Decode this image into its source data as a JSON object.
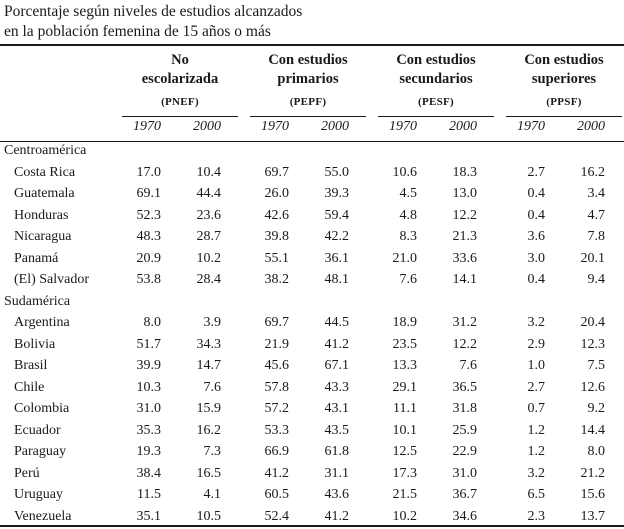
{
  "title": {
    "line1": "Porcentaje según niveles de estudios alcanzados",
    "line2": "en la población femenina de 15 años o más"
  },
  "groups": [
    {
      "line1": "No",
      "line2": "escolarizada",
      "code": "(PNEF)"
    },
    {
      "line1": "Con estudios",
      "line2": "primarios",
      "code": "(PEPF)"
    },
    {
      "line1": "Con estudios",
      "line2": "secundarios",
      "code": "(PESF)"
    },
    {
      "line1": "Con estudios",
      "line2": "superiores",
      "code": "(PPSF)"
    }
  ],
  "years": [
    "1970",
    "2000"
  ],
  "sections": [
    {
      "name": "Centroamérica",
      "rows": [
        {
          "country": "Costa Rica",
          "values": [
            "17.0",
            "10.4",
            "69.7",
            "55.0",
            "10.6",
            "18.3",
            "2.7",
            "16.2"
          ]
        },
        {
          "country": "Guatemala",
          "values": [
            "69.1",
            "44.4",
            "26.0",
            "39.3",
            "4.5",
            "13.0",
            "0.4",
            "3.4"
          ]
        },
        {
          "country": "Honduras",
          "values": [
            "52.3",
            "23.6",
            "42.6",
            "59.4",
            "4.8",
            "12.2",
            "0.4",
            "4.7"
          ]
        },
        {
          "country": "Nicaragua",
          "values": [
            "48.3",
            "28.7",
            "39.8",
            "42.2",
            "8.3",
            "21.3",
            "3.6",
            "7.8"
          ]
        },
        {
          "country": "Panamá",
          "values": [
            "20.9",
            "10.2",
            "55.1",
            "36.1",
            "21.0",
            "33.6",
            "3.0",
            "20.1"
          ]
        },
        {
          "country": "(El) Salvador",
          "values": [
            "53.8",
            "28.4",
            "38.2",
            "48.1",
            "7.6",
            "14.1",
            "0.4",
            "9.4"
          ]
        }
      ]
    },
    {
      "name": "Sudamérica",
      "rows": [
        {
          "country": "Argentina",
          "values": [
            "8.0",
            "3.9",
            "69.7",
            "44.5",
            "18.9",
            "31.2",
            "3.2",
            "20.4"
          ]
        },
        {
          "country": "Bolivia",
          "values": [
            "51.7",
            "34.3",
            "21.9",
            "41.2",
            "23.5",
            "12.2",
            "2.9",
            "12.3"
          ]
        },
        {
          "country": "Brasil",
          "values": [
            "39.9",
            "14.7",
            "45.6",
            "67.1",
            "13.3",
            "7.6",
            "1.0",
            "7.5"
          ]
        },
        {
          "country": "Chile",
          "values": [
            "10.3",
            "7.6",
            "57.8",
            "43.3",
            "29.1",
            "36.5",
            "2.7",
            "12.6"
          ]
        },
        {
          "country": "Colombia",
          "values": [
            "31.0",
            "15.9",
            "57.2",
            "43.1",
            "11.1",
            "31.8",
            "0.7",
            "9.2"
          ]
        },
        {
          "country": "Ecuador",
          "values": [
            "35.3",
            "16.2",
            "53.3",
            "43.5",
            "10.1",
            "25.9",
            "1.2",
            "14.4"
          ]
        },
        {
          "country": "Paraguay",
          "values": [
            "19.3",
            "7.3",
            "66.9",
            "61.8",
            "12.5",
            "22.9",
            "1.2",
            "8.0"
          ]
        },
        {
          "country": "Perú",
          "values": [
            "38.4",
            "16.5",
            "41.2",
            "31.1",
            "17.3",
            "31.0",
            "3.2",
            "21.2"
          ]
        },
        {
          "country": "Uruguay",
          "values": [
            "11.5",
            "4.1",
            "60.5",
            "43.6",
            "21.5",
            "36.7",
            "6.5",
            "15.6"
          ]
        },
        {
          "country": "Venezuela",
          "values": [
            "35.1",
            "10.5",
            "52.4",
            "41.2",
            "10.2",
            "34.6",
            "2.3",
            "13.7"
          ]
        }
      ]
    }
  ]
}
